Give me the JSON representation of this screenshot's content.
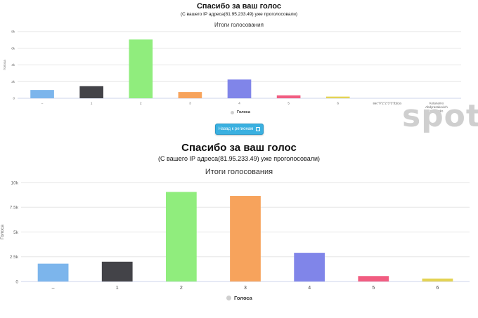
{
  "top": {
    "title": "Спасибо за ваш голос",
    "subtitle": "(С вашего IP адреса(81.95.233.49) уже проголосовали)",
    "legend": "Голоса"
  },
  "back_button": {
    "label": "Назад к регионам"
  },
  "watermark": "spot",
  "bottom": {
    "title": "Спасибо за ваш голос",
    "subtitle": "(С вашего IP адреса(81.95.233.49) уже проголосовали)",
    "legend": "Голоса"
  },
  "colors": {
    "series": [
      "#7cb5ec",
      "#434348",
      "#90ed7d",
      "#f7a35c",
      "#8085e9",
      "#f15c80",
      "#e4d354",
      "#2b908f",
      "#f45b5b"
    ]
  },
  "chart_data": [
    {
      "type": "bar",
      "title": "Итоги голосования",
      "ylabel": "Голоса",
      "ylim": [
        0,
        8000
      ],
      "yticks": [
        "0",
        "2k",
        "4k",
        "6k",
        "8k"
      ],
      "ytick_values": [
        0,
        2000,
        4000,
        6000,
        8000
      ],
      "categories": [
        "–",
        "1",
        "2",
        "3",
        "4",
        "5",
        "6",
        "вас\"б\"2\"2\"3\"3\"(b)(ss",
        "Ketanamo Abdyrazakovich Ketaenko"
      ],
      "series": [
        {
          "name": "Голоса",
          "values": [
            1000,
            1450,
            7050,
            750,
            2250,
            350,
            200,
            0,
            0
          ]
        }
      ],
      "legend": "bottom-center",
      "grid": true
    },
    {
      "type": "bar",
      "title": "Итоги голосования",
      "ylabel": "Голоса",
      "ylim": [
        0,
        10000
      ],
      "yticks": [
        "0",
        "2.5k",
        "5k",
        "7.5k",
        "10k"
      ],
      "ytick_values": [
        0,
        2500,
        5000,
        7500,
        10000
      ],
      "categories": [
        "–",
        "1",
        "2",
        "3",
        "4",
        "5",
        "6"
      ],
      "series": [
        {
          "name": "Голоса",
          "values": [
            1800,
            2000,
            9050,
            8650,
            2900,
            550,
            300
          ]
        }
      ],
      "legend": "bottom-center",
      "grid": true
    }
  ]
}
